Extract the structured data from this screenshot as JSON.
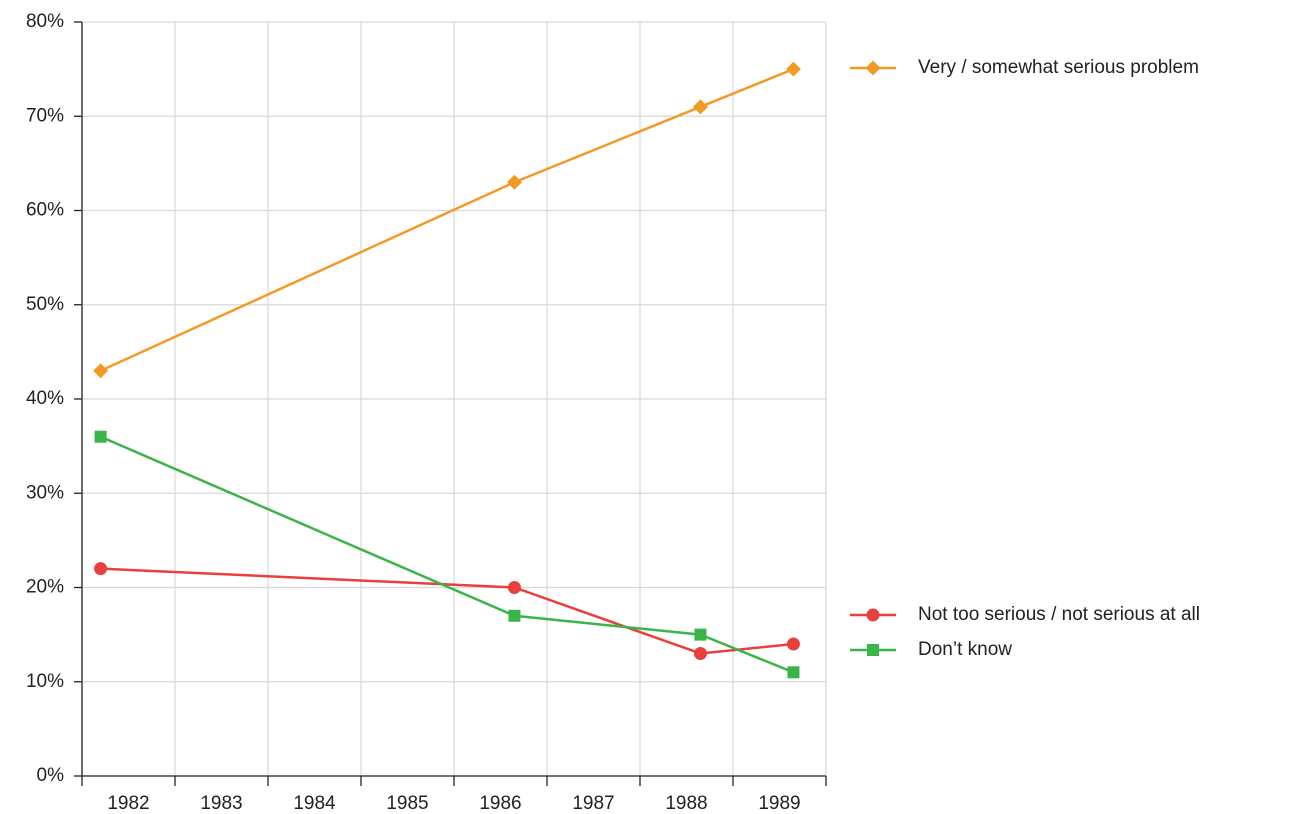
{
  "chart_data": {
    "type": "line",
    "categories": [
      "1982",
      "1983",
      "1984",
      "1985",
      "1986",
      "1987",
      "1988",
      "1989"
    ],
    "x": [
      1982.2,
      1986.65,
      1988.65,
      1989.65
    ],
    "xlim": [
      1982,
      1990
    ],
    "xticks": [
      1982,
      1983,
      1984,
      1985,
      1986,
      1987,
      1988,
      1989,
      1990
    ],
    "ylim": [
      0,
      80
    ],
    "yticks": [
      {
        "value": 0,
        "label": "0%"
      },
      {
        "value": 10,
        "label": "10%"
      },
      {
        "value": 20,
        "label": "20%"
      },
      {
        "value": 30,
        "label": "30%"
      },
      {
        "value": 40,
        "label": "40%"
      },
      {
        "value": 50,
        "label": "50%"
      },
      {
        "value": 60,
        "label": "60%"
      },
      {
        "value": 70,
        "label": "70%"
      },
      {
        "value": 80,
        "label": "80%"
      }
    ],
    "grid": true,
    "legend": "right",
    "series": [
      {
        "name": "Very / somewhat serious problem",
        "color": "#f39a26",
        "marker": "diamond",
        "values": [
          43,
          63,
          71,
          75
        ]
      },
      {
        "name": "Not too serious / not serious at all",
        "color": "#e8403c",
        "marker": "circle",
        "values": [
          22,
          20,
          13,
          14
        ]
      },
      {
        "name": "Don’t know",
        "color": "#3bb44a",
        "marker": "square",
        "values": [
          36,
          17,
          15,
          11
        ]
      }
    ]
  }
}
